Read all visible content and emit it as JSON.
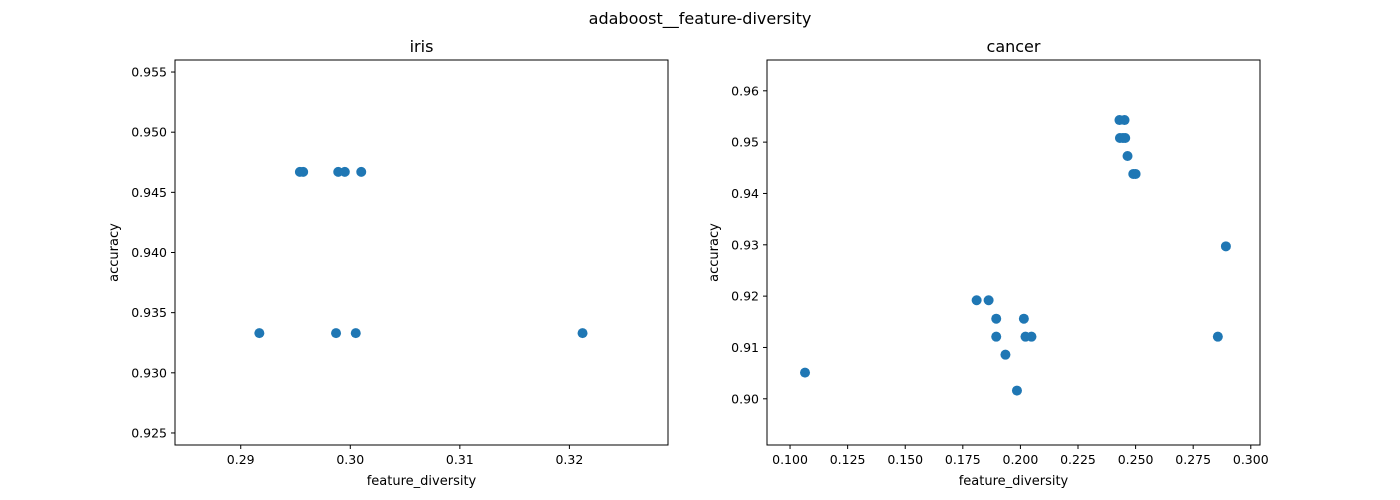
{
  "figure": {
    "title": "adaboost__feature-diversity"
  },
  "colors": {
    "marker": "#1f77b4",
    "axis": "#000000"
  },
  "chart_data": [
    {
      "type": "scatter",
      "title": "iris",
      "xlabel": "feature_diversity",
      "ylabel": "accuracy",
      "xlim": [
        0.284,
        0.329
      ],
      "ylim": [
        0.924,
        0.956
      ],
      "xticks": [
        0.29,
        0.3,
        0.31,
        0.32
      ],
      "xtick_labels": [
        "0.29",
        "0.30",
        "0.31",
        "0.32"
      ],
      "yticks": [
        0.925,
        0.93,
        0.935,
        0.94,
        0.945,
        0.95,
        0.955
      ],
      "ytick_labels": [
        "0.925",
        "0.930",
        "0.935",
        "0.940",
        "0.945",
        "0.950",
        "0.955"
      ],
      "grid": false,
      "points": [
        {
          "x": 0.2954,
          "y": 0.9467
        },
        {
          "x": 0.2957,
          "y": 0.9467
        },
        {
          "x": 0.2989,
          "y": 0.9467
        },
        {
          "x": 0.2995,
          "y": 0.9467
        },
        {
          "x": 0.301,
          "y": 0.9467
        },
        {
          "x": 0.2917,
          "y": 0.9333
        },
        {
          "x": 0.2987,
          "y": 0.9333
        },
        {
          "x": 0.3005,
          "y": 0.9333
        },
        {
          "x": 0.3212,
          "y": 0.9333
        }
      ]
    },
    {
      "type": "scatter",
      "title": "cancer",
      "xlabel": "feature_diversity",
      "ylabel": "accuracy",
      "xlim": [
        0.09,
        0.304
      ],
      "ylim": [
        0.891,
        0.966
      ],
      "xticks": [
        0.1,
        0.125,
        0.15,
        0.175,
        0.2,
        0.225,
        0.25,
        0.275,
        0.3
      ],
      "xtick_labels": [
        "0.100",
        "0.125",
        "0.150",
        "0.175",
        "0.200",
        "0.225",
        "0.250",
        "0.275",
        "0.300"
      ],
      "yticks": [
        0.9,
        0.91,
        0.92,
        0.93,
        0.94,
        0.95,
        0.96
      ],
      "ytick_labels": [
        "0.90",
        "0.91",
        "0.92",
        "0.93",
        "0.94",
        "0.95",
        "0.96"
      ],
      "grid": false,
      "points": [
        {
          "x": 0.1065,
          "y": 0.9051
        },
        {
          "x": 0.181,
          "y": 0.9192
        },
        {
          "x": 0.1862,
          "y": 0.9192
        },
        {
          "x": 0.1895,
          "y": 0.9156
        },
        {
          "x": 0.1895,
          "y": 0.9121
        },
        {
          "x": 0.1935,
          "y": 0.9086
        },
        {
          "x": 0.1985,
          "y": 0.9016
        },
        {
          "x": 0.2015,
          "y": 0.9156
        },
        {
          "x": 0.2022,
          "y": 0.9121
        },
        {
          "x": 0.2048,
          "y": 0.9121
        },
        {
          "x": 0.243,
          "y": 0.9543
        },
        {
          "x": 0.2452,
          "y": 0.9543
        },
        {
          "x": 0.2432,
          "y": 0.9508
        },
        {
          "x": 0.2445,
          "y": 0.9508
        },
        {
          "x": 0.2455,
          "y": 0.9508
        },
        {
          "x": 0.2465,
          "y": 0.9473
        },
        {
          "x": 0.249,
          "y": 0.9438
        },
        {
          "x": 0.25,
          "y": 0.9438
        },
        {
          "x": 0.2857,
          "y": 0.9121
        },
        {
          "x": 0.2892,
          "y": 0.9297
        }
      ]
    }
  ]
}
